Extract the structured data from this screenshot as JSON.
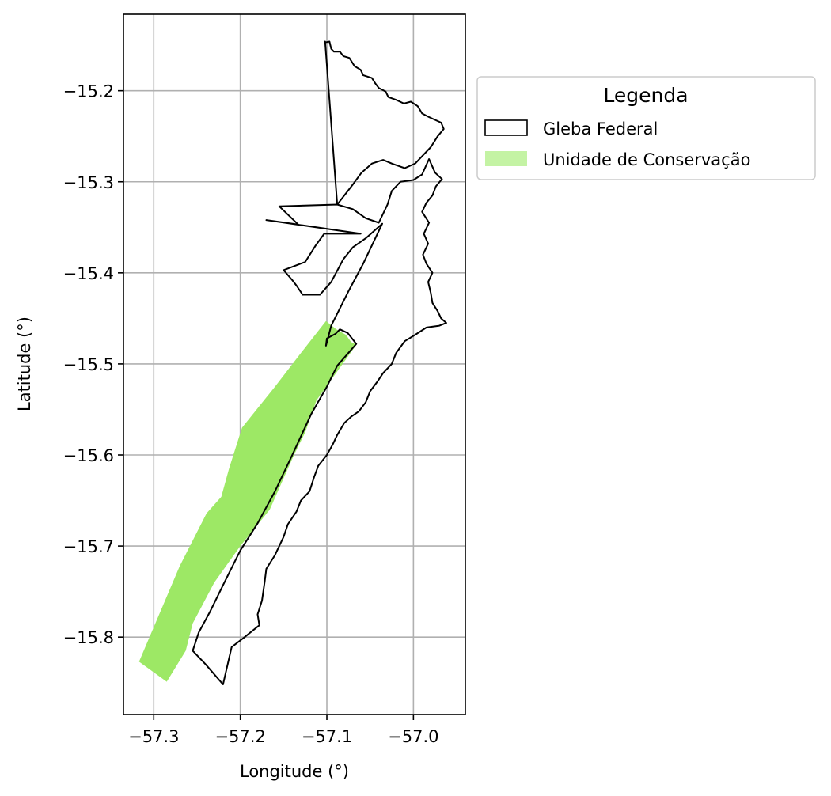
{
  "chart_data": {
    "type": "map",
    "xlabel": "Longitude (°)",
    "ylabel": "Latitude (°)",
    "xlim": [
      -57.335,
      -56.94
    ],
    "ylim": [
      -15.885,
      -15.116
    ],
    "grid": true,
    "x_ticks": [
      {
        "value": -57.3,
        "label": "−57.3"
      },
      {
        "value": -57.2,
        "label": "−57.2"
      },
      {
        "value": -57.1,
        "label": "−57.1"
      },
      {
        "value": -57.0,
        "label": "−57.0"
      }
    ],
    "y_ticks": [
      {
        "value": -15.2,
        "label": "−15.2"
      },
      {
        "value": -15.3,
        "label": "−15.3"
      },
      {
        "value": -15.4,
        "label": "−15.4"
      },
      {
        "value": -15.5,
        "label": "−15.5"
      },
      {
        "value": -15.6,
        "label": "−15.6"
      },
      {
        "value": -15.7,
        "label": "−15.7"
      },
      {
        "value": -15.8,
        "label": "−15.8"
      }
    ],
    "legend": {
      "title": "Legenda",
      "placement": "outside-right-top",
      "entries": [
        {
          "label": "Gleba Federal",
          "kind": "outline",
          "color": "#000000"
        },
        {
          "label": "Unidade de Conservação",
          "kind": "fill",
          "color": "#c4f3a4"
        }
      ]
    },
    "layers": [
      {
        "name": "Unidade de Conservação",
        "fill": "#9de865",
        "coordinates": [
          [
            -57.101,
            -15.453
          ],
          [
            -57.089,
            -15.462
          ],
          [
            -57.078,
            -15.468
          ],
          [
            -57.072,
            -15.476
          ],
          [
            -57.066,
            -15.479
          ],
          [
            -57.112,
            -15.54
          ],
          [
            -57.125,
            -15.575
          ],
          [
            -57.138,
            -15.6
          ],
          [
            -57.152,
            -15.63
          ],
          [
            -57.166,
            -15.66
          ],
          [
            -57.2,
            -15.7
          ],
          [
            -57.23,
            -15.74
          ],
          [
            -57.255,
            -15.785
          ],
          [
            -57.263,
            -15.815
          ],
          [
            -57.285,
            -15.849
          ],
          [
            -57.317,
            -15.827
          ],
          [
            -57.27,
            -15.722
          ],
          [
            -57.239,
            -15.664
          ],
          [
            -57.222,
            -15.646
          ],
          [
            -57.213,
            -15.615
          ],
          [
            -57.198,
            -15.57
          ],
          [
            -57.16,
            -15.525
          ],
          [
            -57.13,
            -15.488
          ]
        ]
      },
      {
        "name": "Gleba Federal",
        "stroke": "#000000",
        "coordinates": [
          [
            -57.102,
            -15.147
          ],
          [
            -57.097,
            -15.146
          ],
          [
            -57.095,
            -15.154
          ],
          [
            -57.092,
            -15.157
          ],
          [
            -57.085,
            -15.157
          ],
          [
            -57.081,
            -15.162
          ],
          [
            -57.074,
            -15.164
          ],
          [
            -57.068,
            -15.173
          ],
          [
            -57.061,
            -15.177
          ],
          [
            -57.058,
            -15.183
          ],
          [
            -57.048,
            -15.186
          ],
          [
            -57.044,
            -15.192
          ],
          [
            -57.04,
            -15.197
          ],
          [
            -57.032,
            -15.201
          ],
          [
            -57.029,
            -15.207
          ],
          [
            -57.02,
            -15.21
          ],
          [
            -57.011,
            -15.214
          ],
          [
            -57.003,
            -15.212
          ],
          [
            -56.995,
            -15.217
          ],
          [
            -56.99,
            -15.225
          ],
          [
            -56.982,
            -15.229
          ],
          [
            -56.975,
            -15.232
          ],
          [
            -56.968,
            -15.235
          ],
          [
            -56.965,
            -15.242
          ],
          [
            -56.972,
            -15.25
          ],
          [
            -56.98,
            -15.262
          ],
          [
            -56.988,
            -15.27
          ],
          [
            -56.998,
            -15.28
          ],
          [
            -57.01,
            -15.285
          ],
          [
            -57.025,
            -15.28
          ],
          [
            -57.035,
            -15.276
          ],
          [
            -57.048,
            -15.28
          ],
          [
            -57.06,
            -15.29
          ],
          [
            -57.07,
            -15.303
          ],
          [
            -57.088,
            -15.325
          ],
          [
            -57.102,
            -15.146
          ]
        ]
      },
      {
        "name": "Gleba Federal",
        "stroke": "#000000",
        "coordinates": [
          [
            -56.982,
            -15.275
          ],
          [
            -56.975,
            -15.29
          ],
          [
            -56.967,
            -15.297
          ],
          [
            -56.974,
            -15.305
          ],
          [
            -56.978,
            -15.315
          ],
          [
            -56.985,
            -15.323
          ],
          [
            -56.99,
            -15.333
          ],
          [
            -56.982,
            -15.345
          ],
          [
            -56.988,
            -15.357
          ],
          [
            -56.983,
            -15.368
          ],
          [
            -56.989,
            -15.38
          ],
          [
            -56.985,
            -15.39
          ],
          [
            -56.978,
            -15.4
          ],
          [
            -56.983,
            -15.41
          ],
          [
            -56.98,
            -15.422
          ],
          [
            -56.978,
            -15.433
          ],
          [
            -56.972,
            -15.442
          ],
          [
            -56.968,
            -15.45
          ],
          [
            -56.962,
            -15.455
          ],
          [
            -56.97,
            -15.458
          ],
          [
            -56.985,
            -15.46
          ],
          [
            -56.998,
            -15.468
          ],
          [
            -57.01,
            -15.475
          ],
          [
            -57.02,
            -15.488
          ],
          [
            -57.025,
            -15.5
          ],
          [
            -57.035,
            -15.51
          ],
          [
            -57.042,
            -15.52
          ],
          [
            -57.05,
            -15.53
          ],
          [
            -57.055,
            -15.542
          ],
          [
            -57.063,
            -15.552
          ],
          [
            -57.072,
            -15.558
          ],
          [
            -57.08,
            -15.565
          ],
          [
            -57.088,
            -15.578
          ],
          [
            -57.093,
            -15.588
          ],
          [
            -57.1,
            -15.6
          ],
          [
            -57.11,
            -15.612
          ],
          [
            -57.115,
            -15.625
          ],
          [
            -57.12,
            -15.64
          ],
          [
            -57.13,
            -15.65
          ],
          [
            -57.135,
            -15.662
          ],
          [
            -57.145,
            -15.676
          ],
          [
            -57.15,
            -15.69
          ],
          [
            -57.16,
            -15.71
          ],
          [
            -57.17,
            -15.725
          ],
          [
            -57.172,
            -15.74
          ],
          [
            -57.175,
            -15.76
          ],
          [
            -57.18,
            -15.775
          ],
          [
            -57.178,
            -15.787
          ],
          [
            -57.195,
            -15.8
          ],
          [
            -57.21,
            -15.811
          ],
          [
            -57.22,
            -15.852
          ],
          [
            -57.24,
            -15.83
          ],
          [
            -57.255,
            -15.815
          ],
          [
            -57.248,
            -15.795
          ],
          [
            -57.235,
            -15.772
          ],
          [
            -57.22,
            -15.743
          ],
          [
            -57.2,
            -15.705
          ],
          [
            -57.18,
            -15.675
          ],
          [
            -57.16,
            -15.64
          ],
          [
            -57.14,
            -15.6
          ],
          [
            -57.118,
            -15.555
          ],
          [
            -57.1,
            -15.525
          ],
          [
            -57.088,
            -15.502
          ],
          [
            -57.066,
            -15.478
          ],
          [
            -57.076,
            -15.466
          ],
          [
            -57.085,
            -15.462
          ],
          [
            -57.09,
            -15.467
          ],
          [
            -57.1,
            -15.472
          ],
          [
            -57.101,
            -15.48
          ],
          [
            -57.095,
            -15.458
          ],
          [
            -57.075,
            -15.42
          ],
          [
            -57.058,
            -15.39
          ],
          [
            -57.036,
            -15.346
          ],
          [
            -57.055,
            -15.362
          ],
          [
            -57.07,
            -15.372
          ],
          [
            -57.081,
            -15.385
          ],
          [
            -57.095,
            -15.41
          ],
          [
            -57.108,
            -15.424
          ],
          [
            -57.128,
            -15.424
          ],
          [
            -57.135,
            -15.414
          ],
          [
            -57.14,
            -15.408
          ],
          [
            -57.15,
            -15.397
          ],
          [
            -57.125,
            -15.388
          ],
          [
            -57.113,
            -15.37
          ],
          [
            -57.103,
            -15.357
          ],
          [
            -57.061,
            -15.357
          ],
          [
            -57.17,
            -15.342
          ],
          [
            -57.133,
            -15.347
          ],
          [
            -57.155,
            -15.327
          ],
          [
            -57.088,
            -15.325
          ],
          [
            -57.07,
            -15.33
          ],
          [
            -57.055,
            -15.34
          ],
          [
            -57.04,
            -15.345
          ],
          [
            -57.03,
            -15.325
          ],
          [
            -57.025,
            -15.31
          ],
          [
            -57.015,
            -15.3
          ],
          [
            -57.0,
            -15.298
          ],
          [
            -56.99,
            -15.292
          ],
          [
            -56.982,
            -15.275
          ]
        ]
      }
    ]
  }
}
